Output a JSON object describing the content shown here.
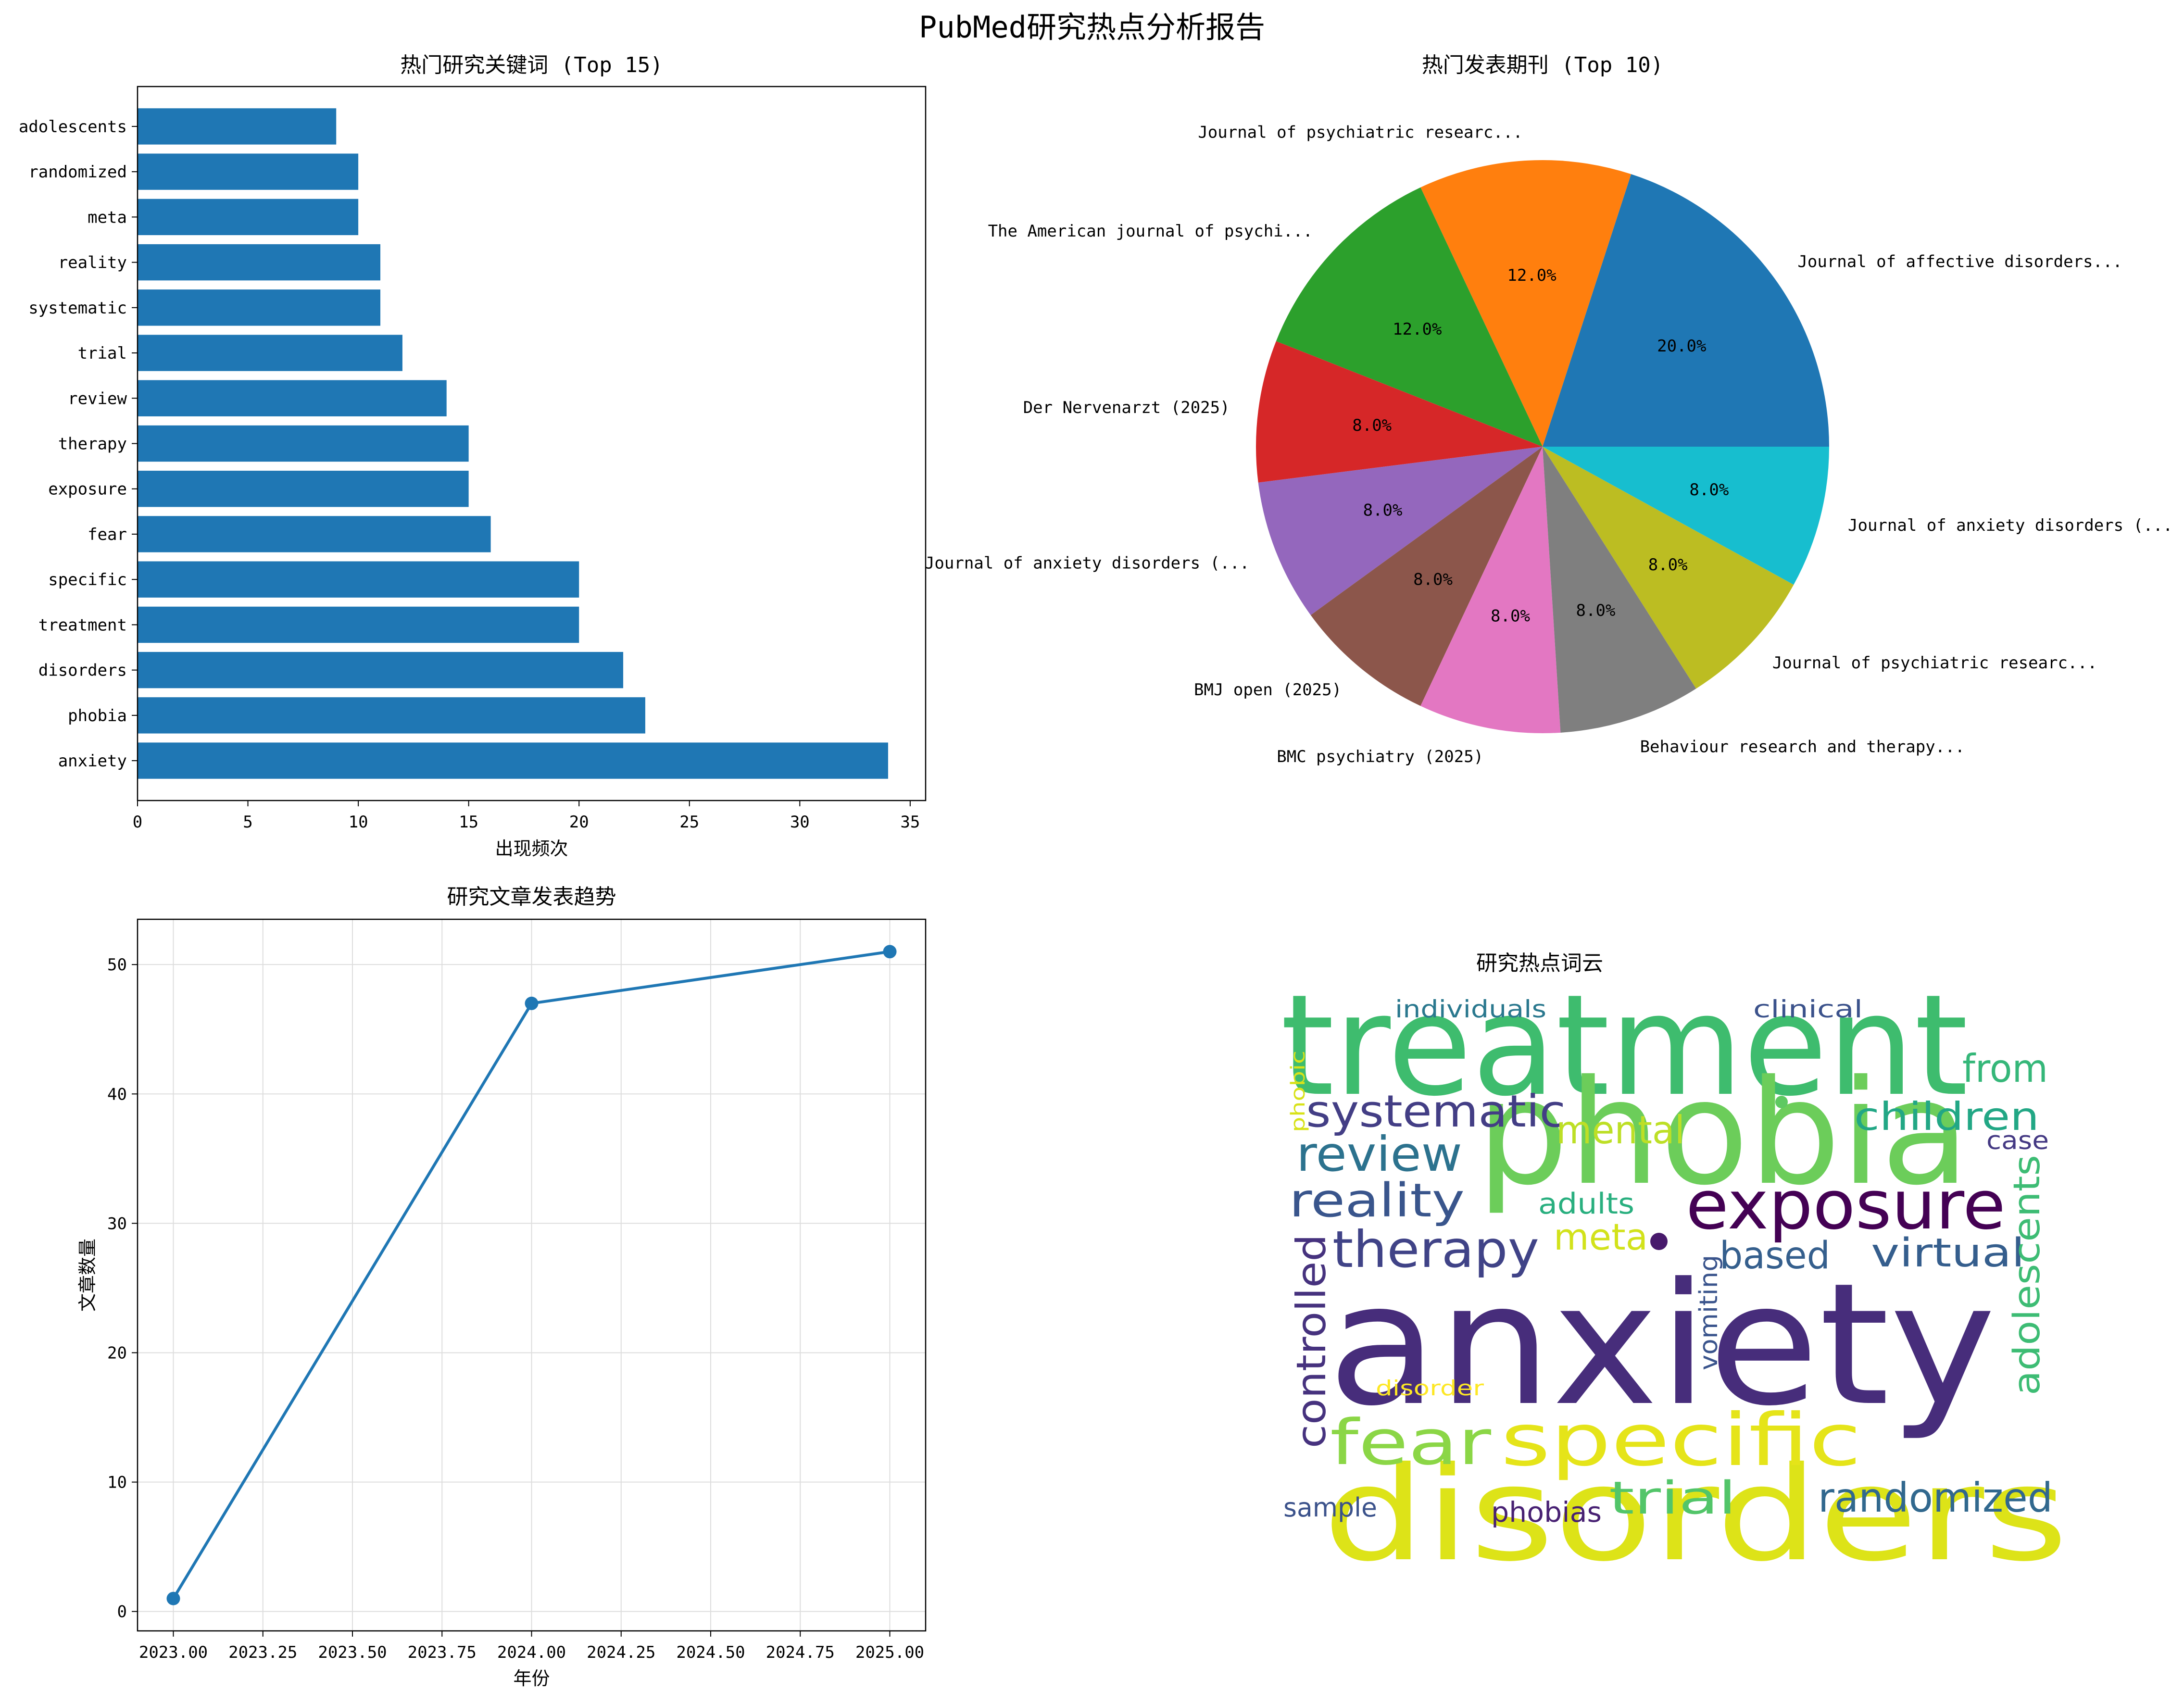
{
  "page": {
    "title": "PubMed研究热点分析报告"
  },
  "chart_data": [
    {
      "id": "keywords",
      "type": "bar",
      "orientation": "horizontal",
      "title": "热门研究关键词 (Top 15)",
      "xlabel": "出现频次",
      "ylabel": "",
      "categories": [
        "anxiety",
        "phobia",
        "disorders",
        "treatment",
        "specific",
        "fear",
        "exposure",
        "therapy",
        "review",
        "trial",
        "systematic",
        "reality",
        "meta",
        "randomized",
        "adolescents"
      ],
      "values": [
        34,
        23,
        22,
        20,
        20,
        16,
        15,
        15,
        14,
        12,
        11,
        11,
        10,
        10,
        9
      ],
      "xlim": [
        0,
        35.7
      ],
      "xticks": [
        0,
        5,
        10,
        15,
        20,
        25,
        30,
        35
      ],
      "color": "#1f77b4"
    },
    {
      "id": "journals",
      "type": "pie",
      "title": "热门发表期刊 (Top 10)",
      "labels": [
        "Journal of affective disorders...",
        "Journal of psychiatric researc...",
        "The American journal of psychi...",
        "Der Nervenarzt (2025)",
        "Journal of anxiety disorders (...",
        "BMJ open (2025)",
        "BMC psychiatry (2025)",
        "Behaviour research and therapy...",
        "Journal of psychiatric researc...",
        "Journal of anxiety disorders (..."
      ],
      "values": [
        5,
        3,
        3,
        2,
        2,
        2,
        2,
        2,
        2,
        2
      ],
      "pct_labels": [
        "20.0%",
        "12.0%",
        "12.0%",
        "8.0%",
        "8.0%",
        "8.0%",
        "8.0%",
        "8.0%",
        "8.0%",
        "8.0%"
      ],
      "colors": [
        "#1f77b4",
        "#ff7f0e",
        "#2ca02c",
        "#d62728",
        "#9467bd",
        "#8c564b",
        "#e377c2",
        "#7f7f7f",
        "#bcbd22",
        "#17becf"
      ],
      "start_angle_deg": 0,
      "direction": "counterclockwise"
    },
    {
      "id": "trend",
      "type": "line",
      "title": "研究文章发表趋势",
      "xlabel": "年份",
      "ylabel": "文章数量",
      "x": [
        2023,
        2024,
        2025
      ],
      "y": [
        1,
        47,
        51
      ],
      "xlim": [
        2022.9,
        2025.1
      ],
      "ylim": [
        -1.5,
        53.5
      ],
      "xticks": [
        2023.0,
        2023.25,
        2023.5,
        2023.75,
        2024.0,
        2024.25,
        2024.5,
        2024.75,
        2025.0
      ],
      "xtick_labels": [
        "2023.00",
        "2023.25",
        "2023.50",
        "2023.75",
        "2024.00",
        "2024.25",
        "2024.50",
        "2024.75",
        "2025.00"
      ],
      "yticks": [
        0,
        10,
        20,
        30,
        40,
        50
      ],
      "grid": true,
      "color": "#1f77b4",
      "marker": "circle"
    },
    {
      "id": "wordcloud",
      "type": "wordcloud",
      "title": "研究热点词云",
      "words": [
        {
          "text": "treatment",
          "color": "#3ebc6e"
        },
        {
          "text": "phobia",
          "color": "#6ccd5a"
        },
        {
          "text": "anxiety",
          "color": "#472d7b"
        },
        {
          "text": "disorders",
          "color": "#dde318"
        },
        {
          "text": "exposure",
          "color": "#440154"
        },
        {
          "text": "specific",
          "color": "#e5e419"
        },
        {
          "text": "fear",
          "color": "#8bd646"
        },
        {
          "text": "systematic",
          "color": "#433e85"
        },
        {
          "text": "review",
          "color": "#2c728e"
        },
        {
          "text": "reality",
          "color": "#39558c"
        },
        {
          "text": "therapy",
          "color": "#404387"
        },
        {
          "text": "mental",
          "color": "#bddf26"
        },
        {
          "text": "children",
          "color": "#22a785"
        },
        {
          "text": "from",
          "color": "#35b779"
        },
        {
          "text": "meta",
          "color": "#d2e21b"
        },
        {
          "text": "adults",
          "color": "#29af7f"
        },
        {
          "text": "based",
          "color": "#355f8d"
        },
        {
          "text": "virtual",
          "color": "#355e8d"
        },
        {
          "text": "adolescents",
          "color": "#3dbc74"
        },
        {
          "text": "controlled",
          "color": "#46327e"
        },
        {
          "text": "vomiting",
          "color": "#3a548c"
        },
        {
          "text": "trial",
          "color": "#52c569"
        },
        {
          "text": "randomized",
          "color": "#31688e"
        },
        {
          "text": "sample",
          "color": "#3b528b"
        },
        {
          "text": "phobias",
          "color": "#482173"
        },
        {
          "text": "individuals",
          "color": "#2a788e"
        },
        {
          "text": "clinical",
          "color": "#3b528b"
        },
        {
          "text": "case",
          "color": "#443983"
        },
        {
          "text": "phobic",
          "color": "#d8e219"
        },
        {
          "text": "disorder",
          "color": "#fde725"
        }
      ]
    }
  ]
}
